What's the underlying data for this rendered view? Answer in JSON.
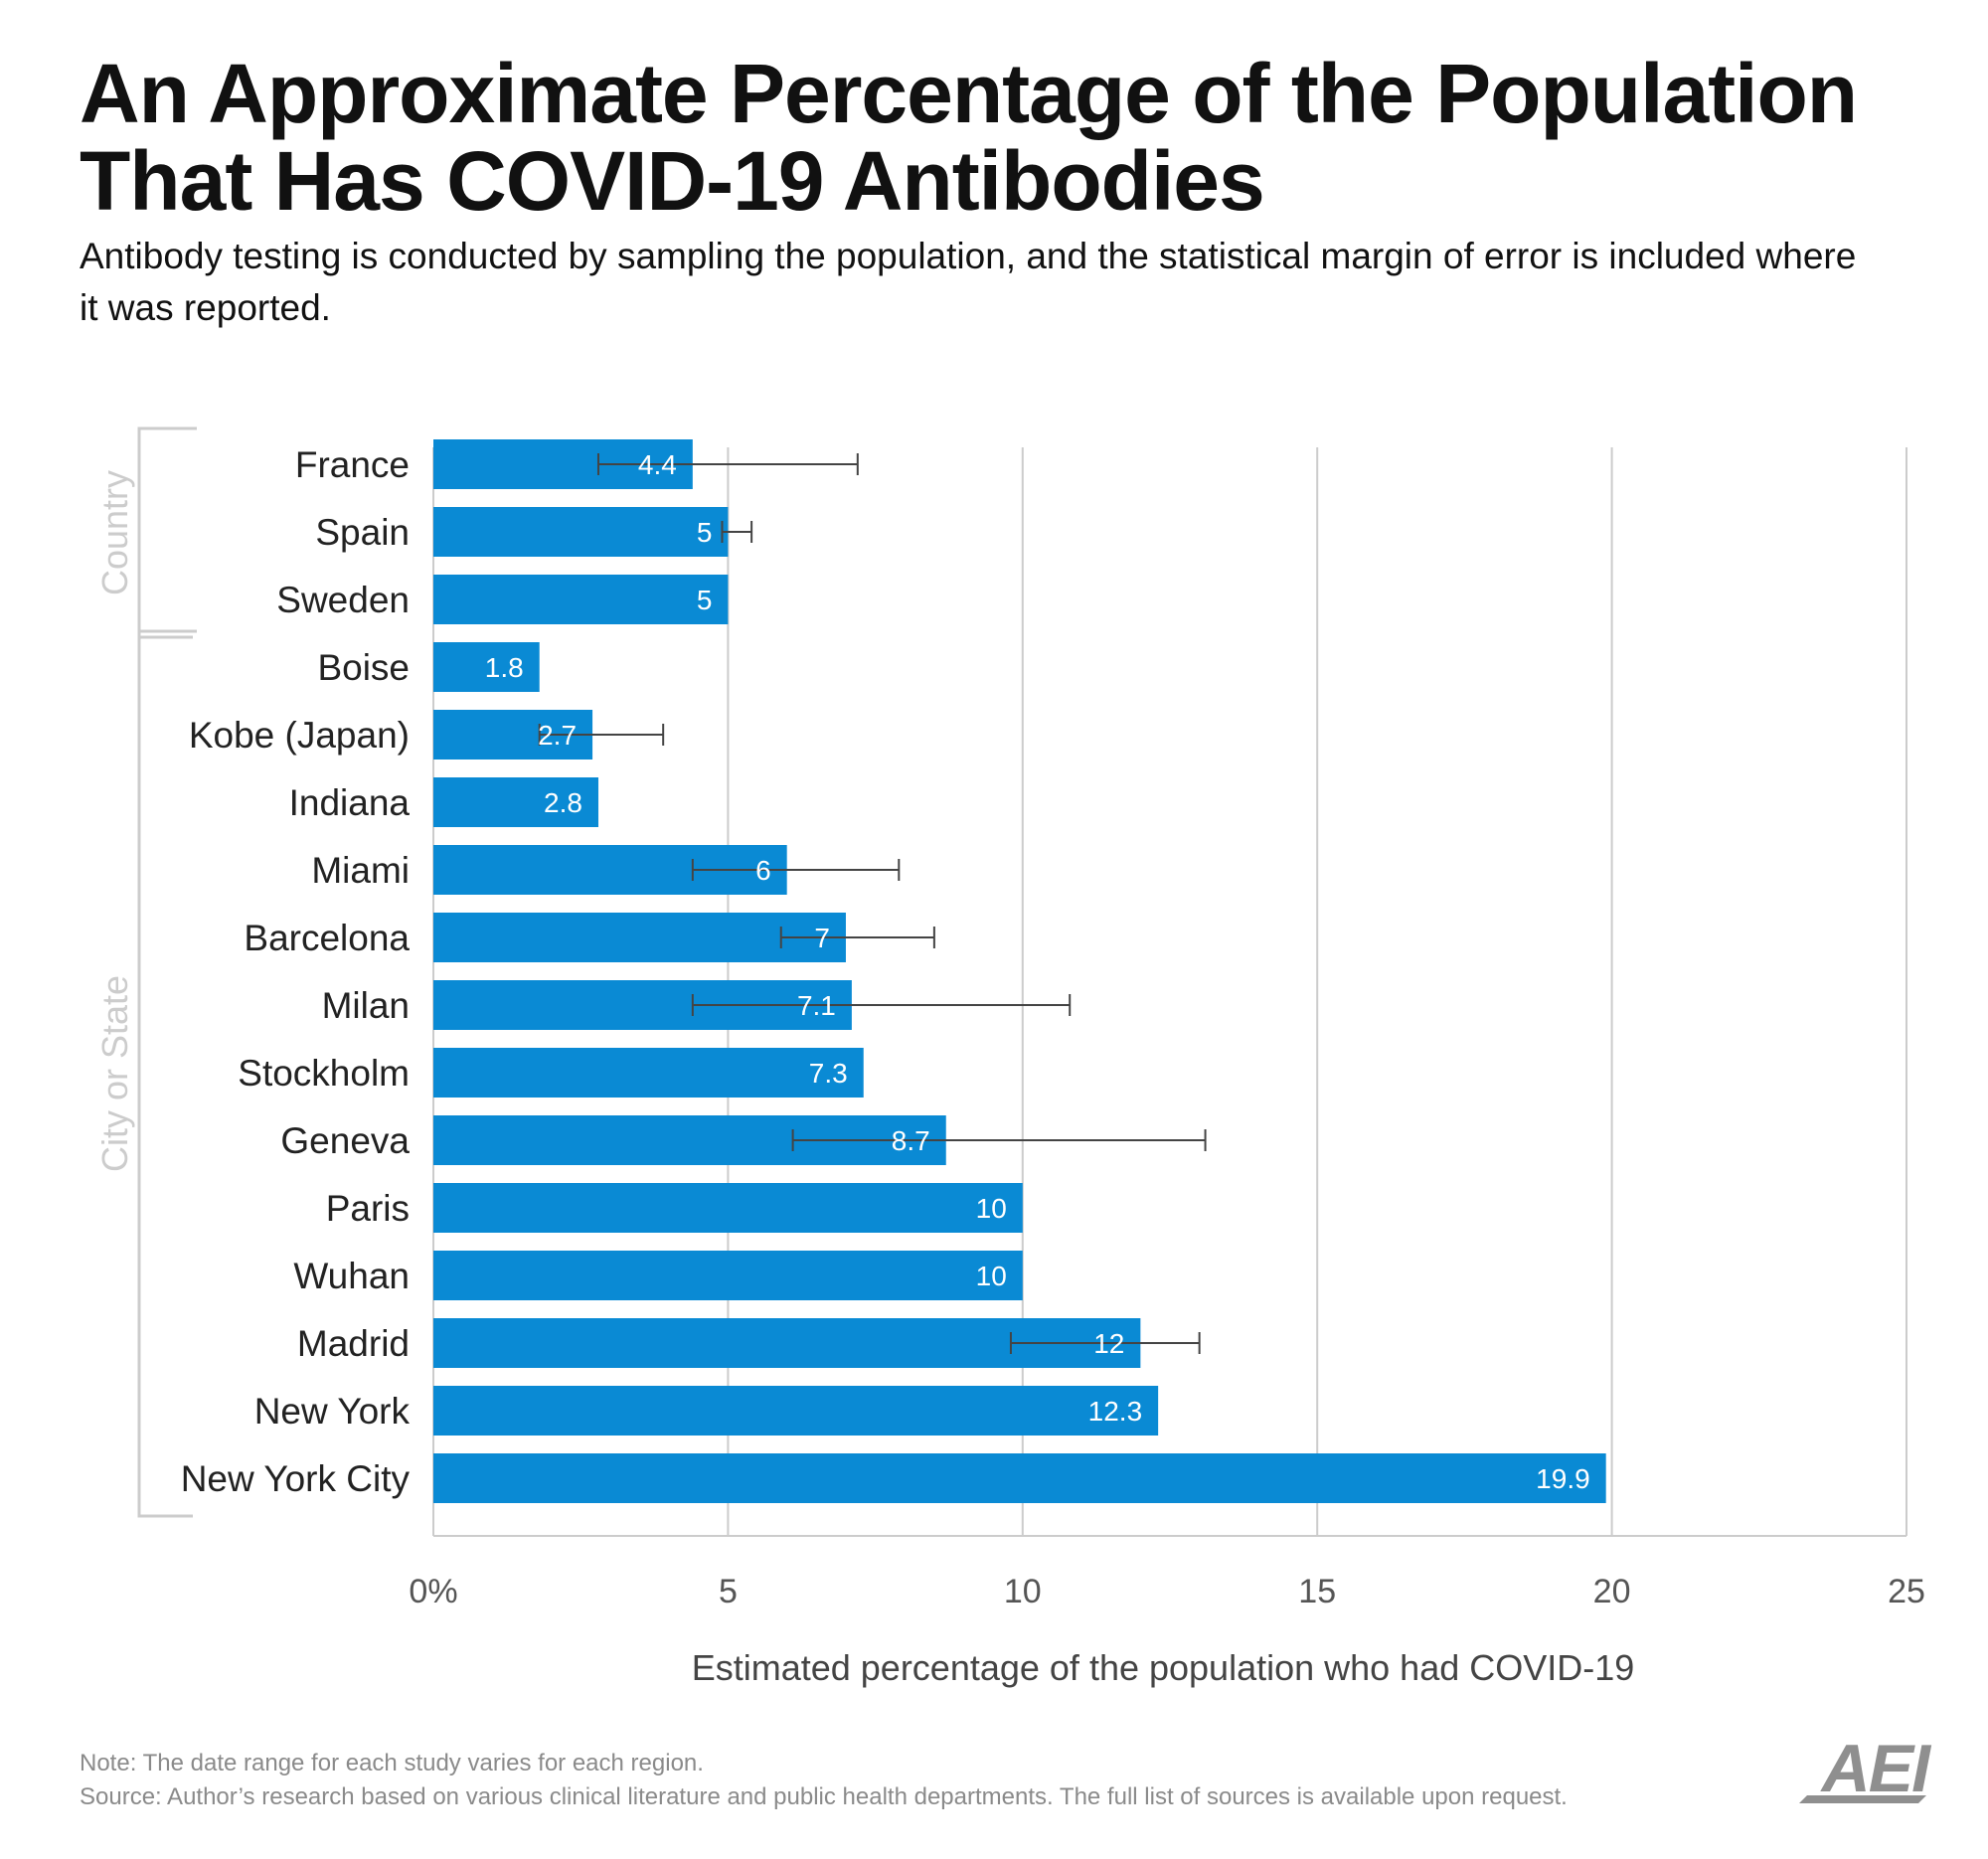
{
  "title": "An Approximate Percentage of the Population That Has COVID-19 Antibodies",
  "subtitle": "Antibody testing is conducted by sampling the population, and the statistical margin of error is included where it was reported.",
  "note": "Note: The date range for each study varies for each region.",
  "source": "Source: Author’s research based on various clinical literature and public health departments. The full list of sources is available upon request.",
  "logo_text": "AEI",
  "colors": {
    "bar": "#0a8ad4",
    "grid": "#cccccc",
    "error": "#444444",
    "group_label": "#cccccc"
  },
  "chart_data": {
    "type": "bar",
    "orientation": "horizontal",
    "title": "An Approximate Percentage of the Population That Has COVID-19 Antibodies",
    "xlabel": "Estimated percentage of the population who had COVID-19",
    "ylabel": "",
    "xlim": [
      0,
      25
    ],
    "xticks": [
      0,
      5,
      10,
      15,
      20,
      25
    ],
    "xtick_labels": [
      "0%",
      "5",
      "10",
      "15",
      "20",
      "25"
    ],
    "grid": "vertical",
    "groups": [
      {
        "label": "Country",
        "categories": [
          "France",
          "Spain",
          "Sweden"
        ]
      },
      {
        "label": "City or State",
        "categories": [
          "Boise",
          "Kobe (Japan)",
          "Indiana",
          "Miami",
          "Barcelona",
          "Milan",
          "Stockholm",
          "Geneva",
          "Paris",
          "Wuhan",
          "Madrid",
          "New York",
          "New York City"
        ]
      }
    ],
    "categories": [
      "France",
      "Spain",
      "Sweden",
      "Boise",
      "Kobe (Japan)",
      "Indiana",
      "Miami",
      "Barcelona",
      "Milan",
      "Stockholm",
      "Geneva",
      "Paris",
      "Wuhan",
      "Madrid",
      "New York",
      "New York City"
    ],
    "values": [
      4.4,
      5,
      5,
      1.8,
      2.7,
      2.8,
      6,
      7,
      7.1,
      7.3,
      8.7,
      10,
      10,
      12,
      12.3,
      19.9
    ],
    "value_labels": [
      "4.4",
      "5",
      "5",
      "1.8",
      "2.7",
      "2.8",
      "6",
      "7",
      "7.1",
      "7.3",
      "8.7",
      "10",
      "10",
      "12",
      "12.3",
      "19.9"
    ],
    "error_ranges": [
      [
        2.8,
        7.2
      ],
      [
        4.9,
        5.4
      ],
      null,
      null,
      [
        1.8,
        3.9
      ],
      null,
      [
        4.4,
        7.9
      ],
      [
        5.9,
        8.5
      ],
      [
        4.4,
        10.8
      ],
      null,
      [
        6.1,
        13.1
      ],
      null,
      null,
      [
        9.8,
        13
      ],
      null,
      null
    ]
  }
}
